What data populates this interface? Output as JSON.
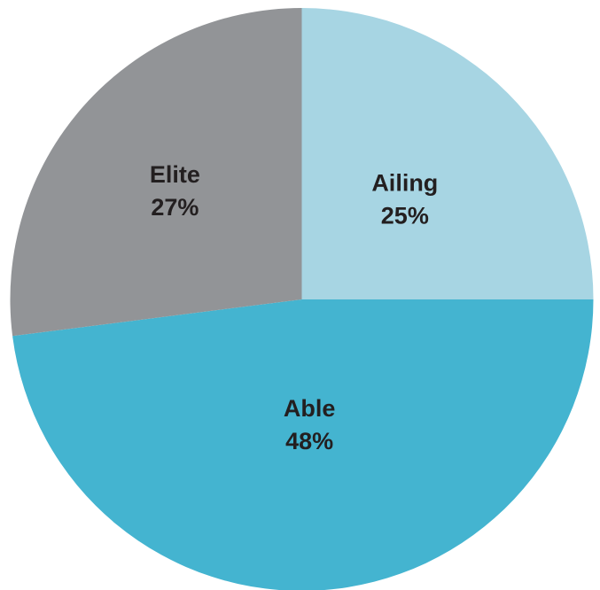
{
  "chart_data": {
    "type": "pie",
    "title": "",
    "slices": [
      {
        "label": "Ailing",
        "value": 25,
        "display": "25%",
        "color": "#a7d5e3"
      },
      {
        "label": "Able",
        "value": 48,
        "display": "48%",
        "color": "#44b4d0"
      },
      {
        "label": "Elite",
        "value": 27,
        "display": "27%",
        "color": "#929497"
      }
    ],
    "start": "12 o'clock",
    "direction": "clockwise",
    "legend": "none"
  }
}
